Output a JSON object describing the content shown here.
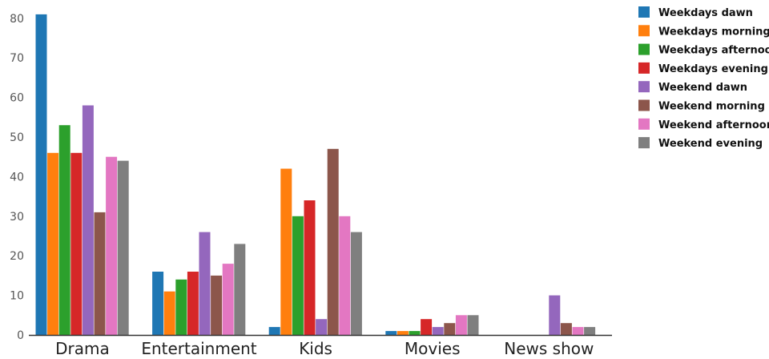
{
  "chart_data": {
    "type": "bar",
    "categories": [
      "Drama",
      "Entertainment",
      "Kids",
      "Movies",
      "News show"
    ],
    "series": [
      {
        "name": "Weekdays dawn",
        "color": "#1f77b4",
        "values": [
          81,
          16,
          2,
          1,
          0
        ]
      },
      {
        "name": "Weekdays morning",
        "color": "#ff7f0e",
        "values": [
          46,
          11,
          42,
          1,
          0
        ]
      },
      {
        "name": "Weekdays afternoon",
        "color": "#2ca02c",
        "values": [
          53,
          14,
          30,
          1,
          0
        ]
      },
      {
        "name": "Weekdays evening",
        "color": "#d62728",
        "values": [
          46,
          16,
          34,
          4,
          0
        ]
      },
      {
        "name": "Weekend dawn",
        "color": "#9467bd",
        "values": [
          58,
          26,
          4,
          2,
          10
        ]
      },
      {
        "name": "Weekend morning",
        "color": "#8c564b",
        "values": [
          31,
          15,
          47,
          3,
          3
        ]
      },
      {
        "name": "Weekend afternoon",
        "color": "#e377c2",
        "values": [
          45,
          18,
          30,
          5,
          2
        ]
      },
      {
        "name": "Weekend evening",
        "color": "#7f7f7f",
        "values": [
          44,
          23,
          26,
          5,
          2
        ]
      }
    ],
    "yticks": [
      "0",
      "10",
      "20",
      "30",
      "40",
      "50",
      "60",
      "70",
      "80"
    ],
    "ylim": [
      0,
      82
    ],
    "grid": false,
    "legend_position": "right"
  }
}
